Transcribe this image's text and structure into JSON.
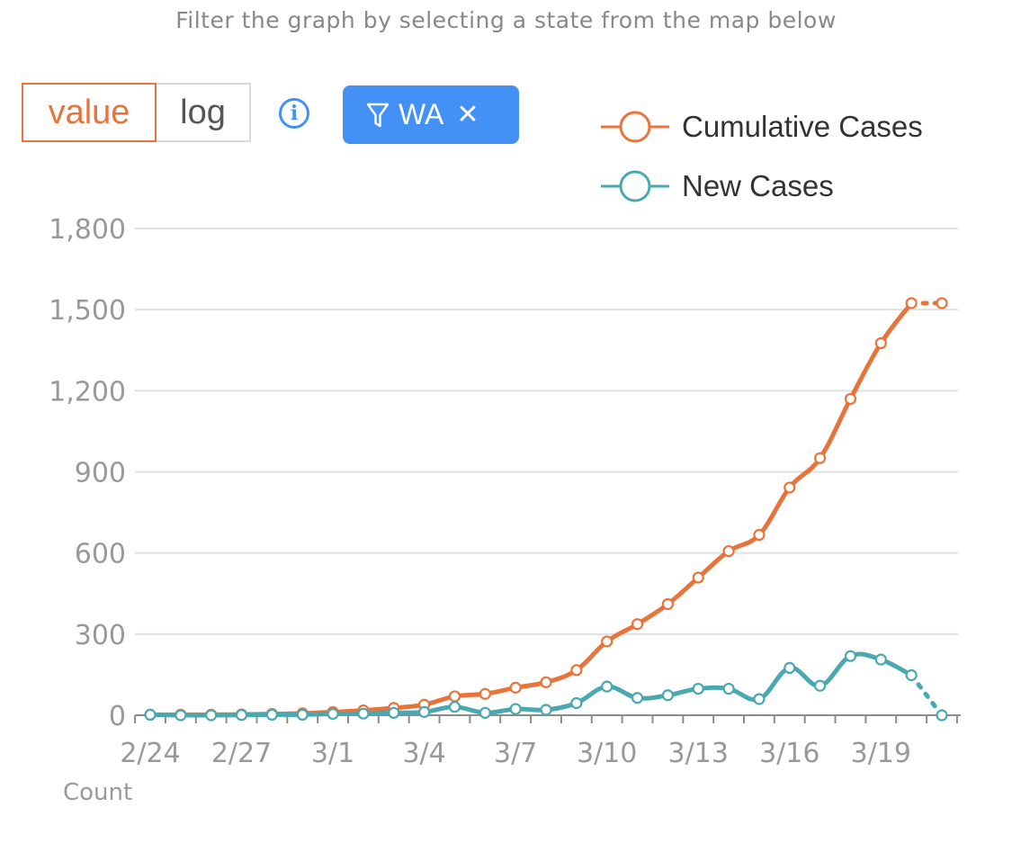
{
  "hint": "Filter the graph by selecting a state from the map below",
  "controls": {
    "scale_options": [
      "value",
      "log"
    ],
    "selected_scale": "value",
    "info_glyph": "i",
    "filter": {
      "label": "WA",
      "close_glyph": "✕",
      "icon": "filter-icon"
    }
  },
  "colors": {
    "cumulative": "#e8743b",
    "new": "#4aa8b0",
    "accent": "#4391f5"
  },
  "chart_data": {
    "type": "line",
    "x": [
      "2/24",
      "2/25",
      "2/26",
      "2/27",
      "2/28",
      "2/29",
      "3/1",
      "3/2",
      "3/3",
      "3/4",
      "3/5",
      "3/6",
      "3/7",
      "3/8",
      "3/9",
      "3/10",
      "3/11",
      "3/12",
      "3/13",
      "3/14",
      "3/15",
      "3/16",
      "3/17",
      "3/18",
      "3/19",
      "3/20",
      "3/21"
    ],
    "x_tick_labels": [
      "2/24",
      "2/27",
      "3/1",
      "3/4",
      "3/7",
      "3/10",
      "3/13",
      "3/16",
      "3/19"
    ],
    "series": [
      {
        "name": "Cumulative Cases",
        "color": "#e8743b",
        "values": [
          2,
          2,
          2,
          3,
          5,
          7,
          12,
          18,
          27,
          39,
          70,
          79,
          102,
          122,
          167,
          273,
          337,
          411,
          509,
          607,
          667,
          842,
          951,
          1170,
          1376,
          1524,
          1524
        ],
        "projected_last": true
      },
      {
        "name": "New Cases",
        "color": "#4aa8b0",
        "values": [
          2,
          0,
          0,
          1,
          2,
          2,
          5,
          6,
          9,
          12,
          31,
          9,
          23,
          20,
          45,
          106,
          64,
          74,
          98,
          98,
          60,
          175,
          109,
          219,
          206,
          148,
          0
        ],
        "projected_last": true
      }
    ],
    "ylim": [
      0,
      1800
    ],
    "y_ticks": [
      0,
      300,
      600,
      900,
      1200,
      1500,
      1800
    ],
    "y_tick_labels": [
      "0",
      "300",
      "600",
      "900",
      "1,200",
      "1,500",
      "1,800"
    ],
    "xlabel": "",
    "ylabel": "Count",
    "legend": "top-right",
    "grid": true
  }
}
